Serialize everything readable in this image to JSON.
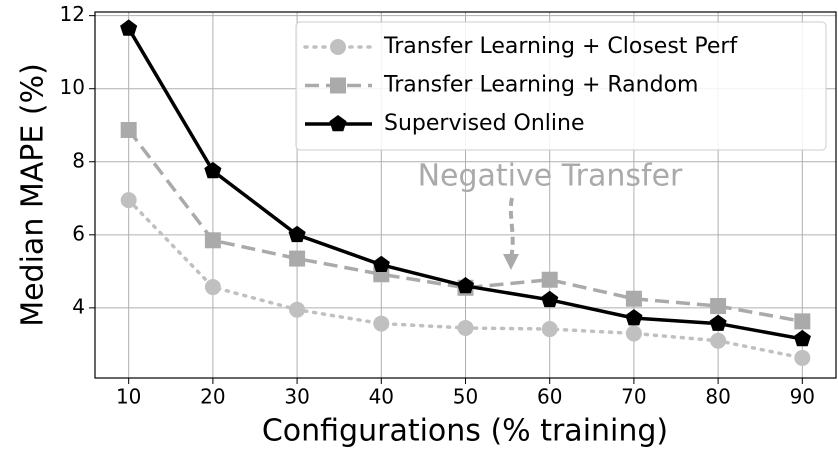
{
  "chart_data": {
    "type": "line",
    "xlabel": "Configurations (% training)",
    "ylabel": "Median MAPE (%)",
    "annotation": "Negative Transfer",
    "x": [
      10,
      20,
      30,
      40,
      50,
      60,
      70,
      80,
      90
    ],
    "series": [
      {
        "name": "Transfer Learning + Closest Perf",
        "color": "#c0c0c0",
        "linestyle": "dotted",
        "marker": "circle",
        "values": [
          6.95,
          4.57,
          3.95,
          3.57,
          3.45,
          3.42,
          3.3,
          3.1,
          2.63
        ]
      },
      {
        "name": "Transfer Learning + Random",
        "color": "#aaaaaa",
        "linestyle": "dashed",
        "marker": "square",
        "values": [
          8.87,
          5.85,
          5.35,
          4.92,
          4.55,
          4.77,
          4.25,
          4.05,
          3.63
        ]
      },
      {
        "name": "Supervised Online",
        "color": "#000000",
        "linestyle": "solid",
        "marker": "pentagon",
        "values": [
          11.65,
          7.75,
          6.0,
          5.18,
          4.6,
          4.22,
          3.72,
          3.57,
          3.15
        ]
      }
    ],
    "xlim": [
      6,
      94
    ],
    "ylim": [
      2.08,
      12.1
    ],
    "xticks": [
      10,
      20,
      30,
      40,
      50,
      60,
      70,
      80,
      90
    ],
    "yticks": [
      4,
      6,
      8,
      10,
      12
    ],
    "grid": true,
    "legend": "upper right"
  }
}
